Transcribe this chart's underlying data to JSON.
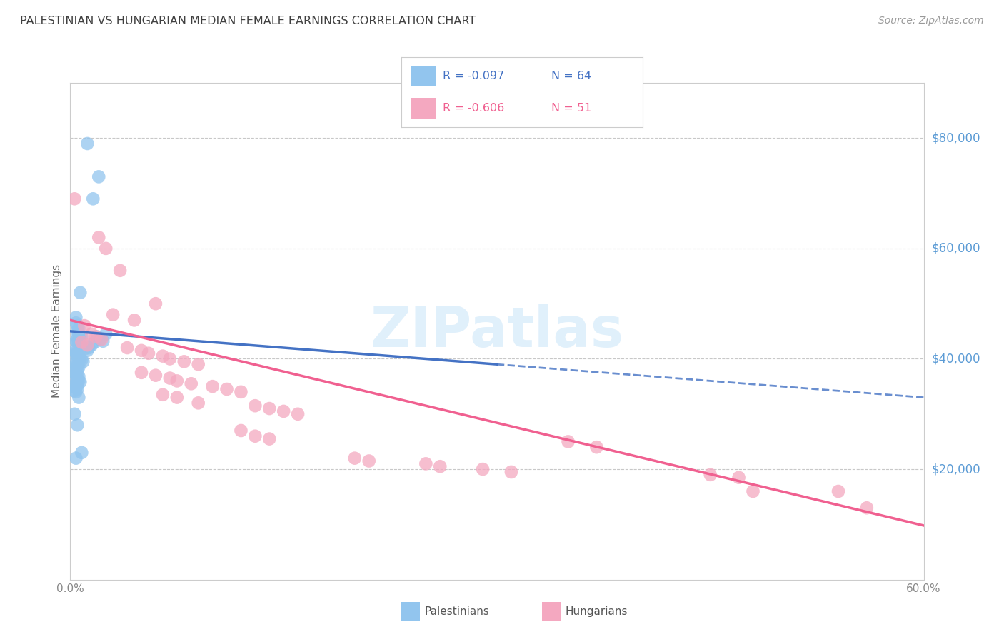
{
  "title": "PALESTINIAN VS HUNGARIAN MEDIAN FEMALE EARNINGS CORRELATION CHART",
  "source": "Source: ZipAtlas.com",
  "ylabel": "Median Female Earnings",
  "watermark": "ZIPatlas",
  "yaxis_labels": [
    "$80,000",
    "$60,000",
    "$40,000",
    "$20,000"
  ],
  "yaxis_values": [
    80000,
    60000,
    40000,
    20000
  ],
  "ylim": [
    0,
    90000
  ],
  "xlim": [
    0.0,
    0.6
  ],
  "legend_blue_R": "-0.097",
  "legend_blue_N": "64",
  "legend_pink_R": "-0.606",
  "legend_pink_N": "51",
  "blue_color": "#92C5EE",
  "pink_color": "#F4A8C0",
  "blue_line_color": "#4472C4",
  "pink_line_color": "#F06090",
  "blue_scatter": [
    [
      0.012,
      79000
    ],
    [
      0.02,
      73000
    ],
    [
      0.016,
      69000
    ],
    [
      0.007,
      52000
    ],
    [
      0.004,
      47500
    ],
    [
      0.004,
      46500
    ],
    [
      0.005,
      46000
    ],
    [
      0.006,
      45500
    ],
    [
      0.005,
      45000
    ],
    [
      0.006,
      44500
    ],
    [
      0.007,
      44200
    ],
    [
      0.008,
      44000
    ],
    [
      0.005,
      43800
    ],
    [
      0.006,
      43500
    ],
    [
      0.004,
      43200
    ],
    [
      0.005,
      43000
    ],
    [
      0.006,
      42800
    ],
    [
      0.007,
      42500
    ],
    [
      0.008,
      42200
    ],
    [
      0.009,
      42000
    ],
    [
      0.01,
      41800
    ],
    [
      0.003,
      41500
    ],
    [
      0.004,
      41200
    ],
    [
      0.005,
      41000
    ],
    [
      0.004,
      40800
    ],
    [
      0.005,
      40500
    ],
    [
      0.006,
      40200
    ],
    [
      0.007,
      40000
    ],
    [
      0.008,
      39800
    ],
    [
      0.009,
      39500
    ],
    [
      0.003,
      39200
    ],
    [
      0.004,
      39000
    ],
    [
      0.005,
      38800
    ],
    [
      0.006,
      38500
    ],
    [
      0.004,
      38200
    ],
    [
      0.005,
      38000
    ],
    [
      0.003,
      37500
    ],
    [
      0.004,
      37200
    ],
    [
      0.005,
      37000
    ],
    [
      0.006,
      36800
    ],
    [
      0.004,
      36500
    ],
    [
      0.005,
      36200
    ],
    [
      0.006,
      36000
    ],
    [
      0.007,
      35800
    ],
    [
      0.004,
      35500
    ],
    [
      0.005,
      35200
    ],
    [
      0.003,
      35000
    ],
    [
      0.004,
      34800
    ],
    [
      0.005,
      34500
    ],
    [
      0.003,
      34200
    ],
    [
      0.004,
      34000
    ],
    [
      0.006,
      33000
    ],
    [
      0.003,
      30000
    ],
    [
      0.005,
      28000
    ],
    [
      0.019,
      44000
    ],
    [
      0.021,
      43500
    ],
    [
      0.017,
      43000
    ],
    [
      0.015,
      42500
    ],
    [
      0.013,
      42000
    ],
    [
      0.012,
      41500
    ],
    [
      0.025,
      44500
    ],
    [
      0.023,
      43200
    ],
    [
      0.008,
      23000
    ],
    [
      0.004,
      22000
    ]
  ],
  "pink_scatter": [
    [
      0.003,
      69000
    ],
    [
      0.02,
      62000
    ],
    [
      0.025,
      60000
    ],
    [
      0.035,
      56000
    ],
    [
      0.06,
      50000
    ],
    [
      0.03,
      48000
    ],
    [
      0.045,
      47000
    ],
    [
      0.01,
      46000
    ],
    [
      0.015,
      44500
    ],
    [
      0.018,
      44000
    ],
    [
      0.022,
      43500
    ],
    [
      0.008,
      43000
    ],
    [
      0.012,
      42500
    ],
    [
      0.04,
      42000
    ],
    [
      0.05,
      41500
    ],
    [
      0.055,
      41000
    ],
    [
      0.065,
      40500
    ],
    [
      0.07,
      40000
    ],
    [
      0.08,
      39500
    ],
    [
      0.09,
      39000
    ],
    [
      0.05,
      37500
    ],
    [
      0.06,
      37000
    ],
    [
      0.07,
      36500
    ],
    [
      0.075,
      36000
    ],
    [
      0.085,
      35500
    ],
    [
      0.1,
      35000
    ],
    [
      0.11,
      34500
    ],
    [
      0.12,
      34000
    ],
    [
      0.065,
      33500
    ],
    [
      0.075,
      33000
    ],
    [
      0.09,
      32000
    ],
    [
      0.13,
      31500
    ],
    [
      0.14,
      31000
    ],
    [
      0.15,
      30500
    ],
    [
      0.16,
      30000
    ],
    [
      0.12,
      27000
    ],
    [
      0.13,
      26000
    ],
    [
      0.14,
      25500
    ],
    [
      0.2,
      22000
    ],
    [
      0.21,
      21500
    ],
    [
      0.25,
      21000
    ],
    [
      0.26,
      20500
    ],
    [
      0.29,
      20000
    ],
    [
      0.31,
      19500
    ],
    [
      0.35,
      25000
    ],
    [
      0.37,
      24000
    ],
    [
      0.45,
      19000
    ],
    [
      0.47,
      18500
    ],
    [
      0.48,
      16000
    ],
    [
      0.54,
      16000
    ],
    [
      0.56,
      13000
    ]
  ],
  "background_color": "#FFFFFF",
  "grid_color": "#C8C8C8",
  "title_color": "#404040",
  "right_axis_label_color": "#5B9BD5"
}
